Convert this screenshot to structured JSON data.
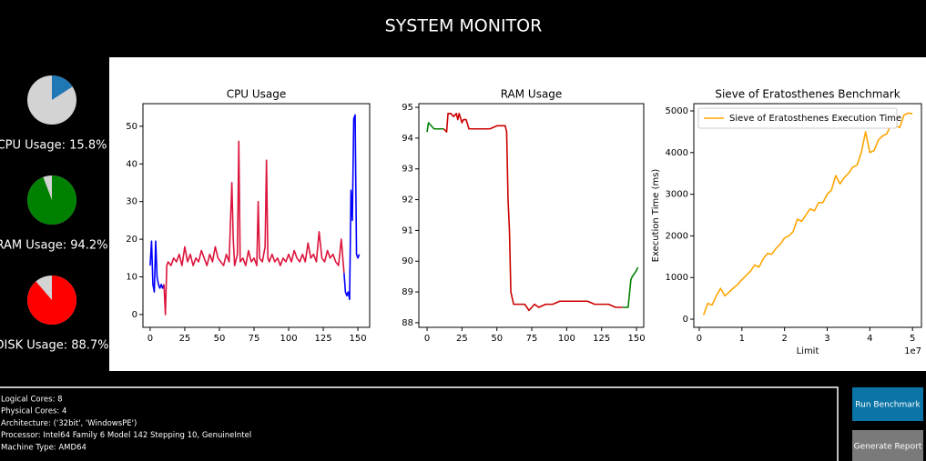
{
  "header": {
    "title": "SYSTEM MONITOR"
  },
  "chart_data": [
    {
      "type": "pie",
      "label": "CPU Usage: 15.8%",
      "value": 15.8,
      "color": "#1f77b4",
      "rest_color": "#d3d3d3"
    },
    {
      "type": "pie",
      "label": "RAM Usage: 94.2%",
      "value": 94.2,
      "color": "#008000",
      "rest_color": "#d3d3d3"
    },
    {
      "type": "pie",
      "label": "DISK Usage: 88.7%",
      "value": 88.7,
      "color": "#ff0000",
      "rest_color": "#d3d3d3"
    },
    {
      "type": "line",
      "title": "CPU Usage",
      "xlim": [
        -5.2,
        158.5
      ],
      "xticks": [
        0,
        25,
        50,
        75,
        100,
        125,
        150
      ],
      "ylim": [
        -3.4,
        56
      ],
      "yticks": [
        0,
        10,
        20,
        30,
        40,
        50
      ],
      "series": [
        {
          "color": "#0000ff",
          "x": [
            0,
            1,
            2,
            3,
            4,
            5,
            6,
            7,
            8,
            9,
            10
          ],
          "values": [
            13,
            19.5,
            8,
            6,
            19.5,
            10,
            8,
            7,
            8,
            7,
            8
          ]
        },
        {
          "color": "#dc143c",
          "x": [
            10,
            11,
            12,
            13,
            15,
            17,
            19,
            21,
            23,
            25,
            27,
            29,
            31,
            33,
            35,
            37,
            39,
            41,
            43,
            45,
            47,
            49,
            51,
            53,
            55,
            57,
            59,
            60,
            61,
            63,
            64,
            65,
            67,
            69,
            71,
            73,
            75,
            77,
            78,
            79,
            81,
            83,
            84,
            85,
            86,
            88,
            90,
            92,
            94,
            96,
            98,
            100,
            102,
            104,
            106,
            108,
            110,
            112,
            114,
            116,
            118,
            120,
            122,
            124,
            126,
            128,
            130,
            132,
            134,
            136,
            138,
            140
          ],
          "values": [
            8,
            0,
            13,
            14,
            13,
            15,
            14,
            16,
            13,
            18,
            14,
            16,
            13,
            15,
            14,
            17,
            15,
            13,
            16,
            14,
            18,
            15,
            14,
            13,
            16,
            14,
            35,
            20,
            13,
            16,
            46,
            14,
            15,
            13,
            17,
            14,
            15,
            13,
            30,
            15,
            14,
            18,
            41,
            15,
            14,
            16,
            14,
            15,
            13,
            15,
            14,
            16,
            14,
            17,
            15,
            14,
            16,
            14,
            19,
            15,
            16,
            14,
            22,
            15,
            14,
            17,
            15,
            16,
            14,
            13,
            20,
            11
          ]
        },
        {
          "color": "#0000ff",
          "x": [
            140,
            141,
            142,
            143,
            144,
            145,
            146,
            147,
            148,
            149,
            150,
            151
          ],
          "values": [
            11,
            6,
            5,
            6,
            4,
            33,
            25,
            52,
            53,
            16,
            15,
            16
          ]
        }
      ]
    },
    {
      "type": "line",
      "title": "RAM Usage",
      "xlim": [
        -5.9,
        155.2
      ],
      "xticks": [
        0,
        25,
        50,
        75,
        100,
        125,
        150
      ],
      "ylim": [
        87.85,
        95.12
      ],
      "yticks": [
        88,
        89,
        90,
        91,
        92,
        93,
        94,
        95
      ],
      "series": [
        {
          "color": "#008000",
          "x": [
            0,
            1,
            3,
            5,
            8,
            12
          ],
          "values": [
            94.2,
            94.5,
            94.4,
            94.3,
            94.3,
            94.3
          ]
        },
        {
          "color": "#cc0000",
          "x": [
            12,
            14,
            15,
            17,
            19,
            21,
            22,
            23,
            25,
            26,
            28,
            30,
            35,
            40,
            45,
            50,
            52,
            54,
            56,
            57,
            58,
            59,
            60,
            62,
            65,
            70,
            73,
            75,
            77,
            80,
            85,
            90,
            95,
            100,
            105,
            110,
            115,
            120,
            125,
            130,
            135,
            140
          ],
          "values": [
            94.3,
            94.2,
            94.8,
            94.8,
            94.7,
            94.8,
            94.6,
            94.8,
            94.5,
            94.6,
            94.6,
            94.3,
            94.3,
            94.3,
            94.3,
            94.4,
            94.4,
            94.4,
            94.4,
            94.2,
            92.0,
            91.0,
            89.0,
            88.6,
            88.6,
            88.6,
            88.4,
            88.5,
            88.6,
            88.5,
            88.6,
            88.6,
            88.7,
            88.7,
            88.7,
            88.7,
            88.7,
            88.6,
            88.6,
            88.6,
            88.5,
            88.5
          ]
        },
        {
          "color": "#008000",
          "x": [
            140,
            144,
            146,
            147,
            150,
            151
          ],
          "values": [
            88.5,
            88.5,
            89.4,
            89.5,
            89.7,
            89.8
          ]
        }
      ]
    },
    {
      "type": "line",
      "title": "Sieve of Eratosthenes Benchmark",
      "x_label": "Limit",
      "y_label": "Execution Time (ms)",
      "x_offset_label": "1e7",
      "legend": "upper left",
      "xlim": [
        -1280000,
        52100000
      ],
      "xticks": [
        0,
        {
          "value": 10000000,
          "label": "1"
        },
        {
          "value": 20000000,
          "label": "2"
        },
        {
          "value": 30000000,
          "label": "3"
        },
        {
          "value": 40000000,
          "label": "4"
        },
        {
          "value": 50000000,
          "label": "5"
        }
      ],
      "ylim": [
        -196,
        5175
      ],
      "yticks": [
        0,
        1000,
        2000,
        3000,
        4000,
        5000
      ],
      "series": [
        {
          "name": "Sieve of Eratosthenes Execution Time",
          "color": "#ffa500",
          "x": [
            1000000,
            2000000,
            3000000,
            4000000,
            5000000,
            6000000,
            7000000,
            8000000,
            9000000,
            10000000,
            11000000,
            12000000,
            13000000,
            14000000,
            15000000,
            16000000,
            17000000,
            18000000,
            19000000,
            20000000,
            21000000,
            22000000,
            23000000,
            24000000,
            25000000,
            26000000,
            27000000,
            28000000,
            29000000,
            30000000,
            31000000,
            32000000,
            33000000,
            34000000,
            35000000,
            36000000,
            37000000,
            38000000,
            39000000,
            40000000,
            41000000,
            42000000,
            43000000,
            44000000,
            45000000,
            46000000,
            47000000,
            48000000,
            49000000,
            50000000
          ],
          "values": [
            100,
            380,
            340,
            560,
            740,
            560,
            650,
            750,
            830,
            950,
            1050,
            1150,
            1300,
            1250,
            1450,
            1580,
            1560,
            1700,
            1800,
            1950,
            2000,
            2100,
            2400,
            2350,
            2500,
            2650,
            2600,
            2800,
            2800,
            3000,
            3100,
            3450,
            3250,
            3400,
            3500,
            3650,
            3700,
            4000,
            4500,
            4000,
            4050,
            4300,
            4400,
            4450,
            4700,
            4650,
            4600,
            4900,
            4950,
            4930
          ]
        }
      ]
    }
  ],
  "system_info": [
    "Logical Cores: 8",
    "Physical Cores: 4",
    "Architecture: ('32bit', 'WindowsPE')",
    "Processor: Intel64 Family 6 Model 142 Stepping 10, GenuineIntel",
    "Machine Type: AMD64"
  ],
  "buttons": [
    "Run Benchmark",
    "Generate Report"
  ]
}
